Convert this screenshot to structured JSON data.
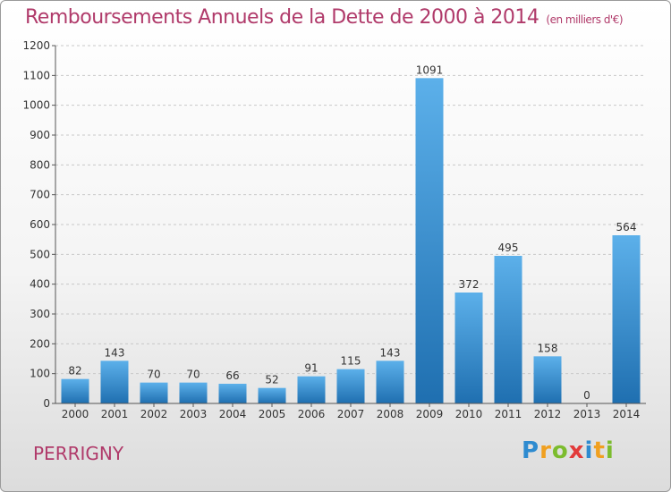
{
  "title": "Remboursements Annuels de la Dette de 2000 à 2014",
  "unit_note": "(en milliers d'€)",
  "commune": "PERRIGNY",
  "brand": {
    "letters": [
      "P",
      "r",
      "o",
      "x",
      "i",
      "t",
      "i"
    ],
    "colors": [
      "#2e8bd0",
      "#f0a020",
      "#7cbc2e",
      "#e23b3b",
      "#2e8bd0",
      "#f0a020",
      "#7cbc2e"
    ]
  },
  "colors": {
    "bar_light": "#5cb0ea",
    "bar_dark": "#1f6fb0",
    "grid": "#c8c8c8",
    "axis": "#555555",
    "title": "#b03a6a"
  },
  "chart_data": {
    "type": "bar",
    "title": "Remboursements Annuels de la Dette de 2000 à 2014",
    "ylabel": "(en milliers d'€)",
    "categories": [
      "2000",
      "2001",
      "2002",
      "2003",
      "2004",
      "2005",
      "2006",
      "2007",
      "2008",
      "2009",
      "2010",
      "2011",
      "2012",
      "2013",
      "2014"
    ],
    "values": [
      82,
      143,
      70,
      70,
      66,
      52,
      91,
      115,
      143,
      1091,
      372,
      495,
      158,
      0,
      564
    ],
    "ylim": [
      0,
      1200
    ],
    "yticks": [
      0,
      100,
      200,
      300,
      400,
      500,
      600,
      700,
      800,
      900,
      1000,
      1100,
      1200
    ],
    "grid": true
  }
}
